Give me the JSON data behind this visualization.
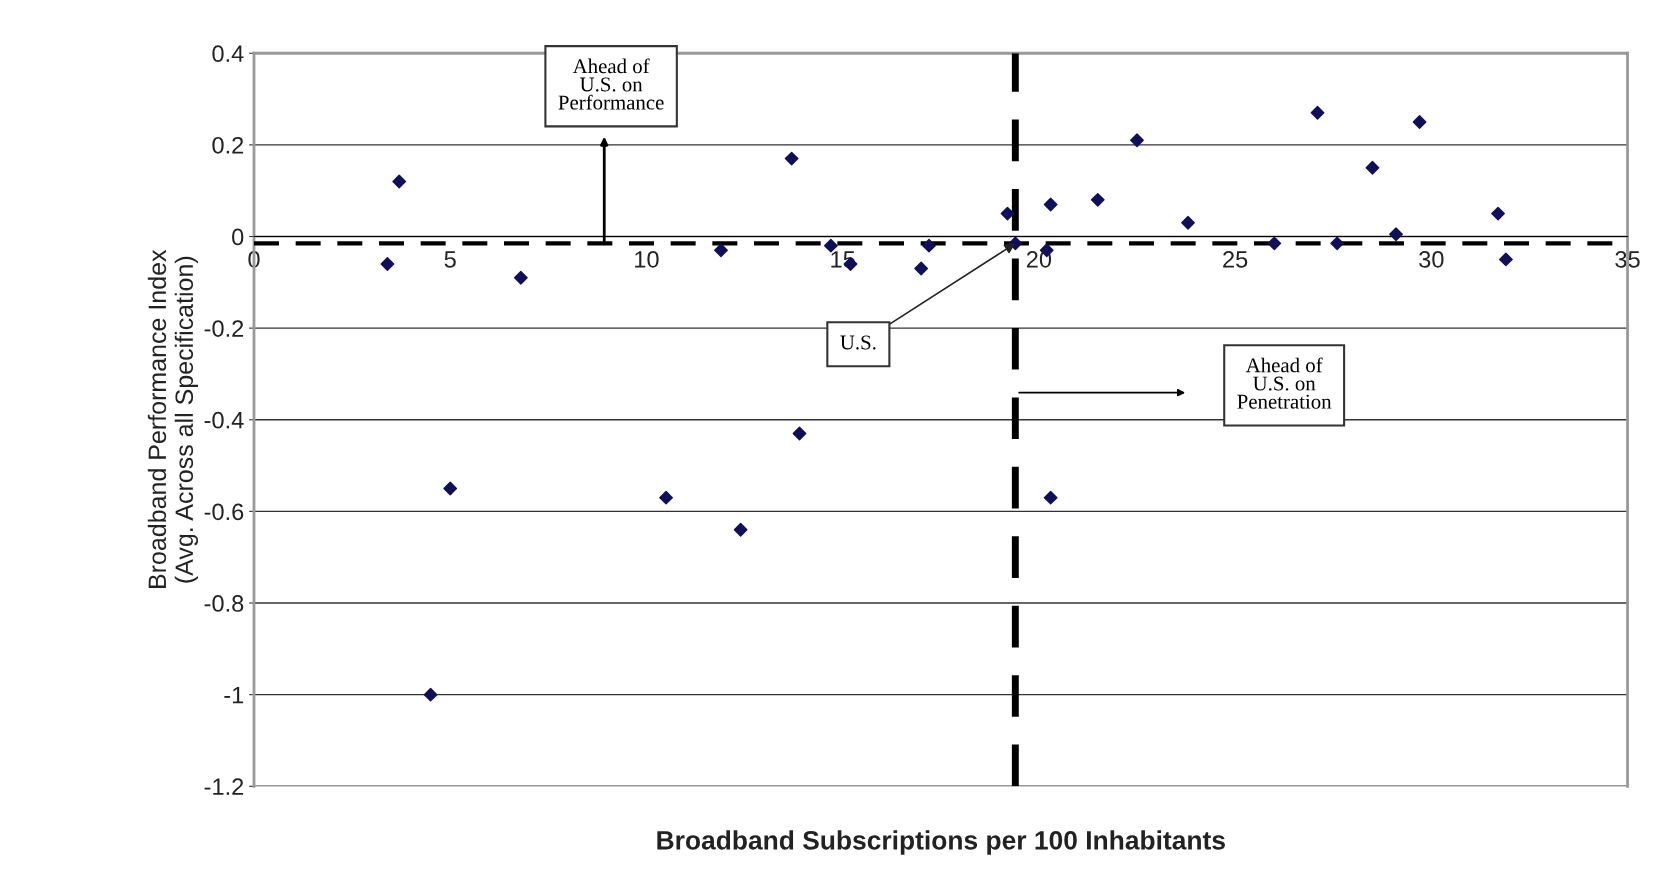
{
  "chart_data": {
    "type": "scatter",
    "xlabel": "Broadband Subscriptions per 100 Inhabitants",
    "ylabel": "Broadband Performance Index\n(Avg. Across all Specification)",
    "x": [
      3.7,
      3.4,
      5.0,
      4.5,
      6.8,
      10.5,
      11.9,
      12.4,
      13.7,
      13.9,
      14.7,
      15.2,
      17.0,
      17.2,
      19.2,
      19.4,
      20.3,
      20.2,
      20.3,
      21.5,
      22.5,
      23.8,
      26.0,
      27.1,
      27.6,
      28.5,
      29.1,
      29.7,
      31.7,
      31.9
    ],
    "series": [
      {
        "color": "#10105a",
        "values": [
          0.12,
          -0.06,
          -0.55,
          -1.0,
          -0.09,
          -0.57,
          -0.03,
          -0.64,
          0.17,
          -0.43,
          -0.02,
          -0.06,
          -0.07,
          -0.02,
          0.05,
          -0.015,
          0.07,
          -0.03,
          -0.57,
          0.08,
          0.21,
          0.03,
          -0.015,
          0.27,
          -0.015,
          0.15,
          0.005,
          0.25,
          0.05,
          -0.05
        ]
      }
    ],
    "xlim": [
      0,
      35
    ],
    "xticks": [
      0,
      5,
      10,
      15,
      20,
      25,
      30,
      35
    ],
    "ylim": [
      -1.2,
      0.4
    ],
    "yticks": [
      -1.2,
      -1,
      -0.8,
      -0.6,
      -0.4,
      -0.2,
      0,
      0.2,
      0.4
    ],
    "grid": "y",
    "marker": "diamond",
    "ref_lines": [
      {
        "axis": "y",
        "value": -0.015,
        "color": "#000000",
        "line_style": "dashed"
      },
      {
        "axis": "x",
        "value": 19.4,
        "color": "#000000",
        "line_style": "dashed"
      }
    ],
    "annotations": [
      "Ahead of\nU.S. on\nPerformance",
      {
        "text": "U.S.",
        "x": 19.4,
        "y": -0.015
      },
      "Ahead of\nU.S. on\nPenetration"
    ]
  }
}
